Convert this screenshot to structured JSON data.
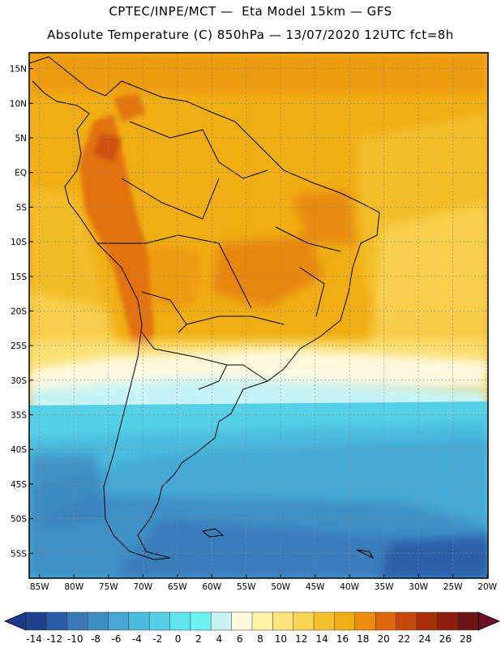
{
  "header": {
    "title_line1": "CPTEC/INPE/MCT —  Eta Model 15km — GFS",
    "title_line2": "Absolute Temperature (C) 850hPa — 13/07/2020 12UTC fct=8h"
  },
  "map": {
    "region": "South America",
    "lat_labels": [
      "15N",
      "10N",
      "5N",
      "EQ",
      "5S",
      "10S",
      "15S",
      "20S",
      "25S",
      "30S",
      "35S",
      "40S",
      "45S",
      "50S",
      "55S"
    ],
    "lat_values": [
      15,
      10,
      5,
      0,
      -5,
      -10,
      -15,
      -20,
      -25,
      -30,
      -35,
      -40,
      -45,
      -50,
      -55
    ],
    "lon_labels": [
      "85W",
      "80W",
      "75W",
      "70W",
      "65W",
      "60W",
      "55W",
      "50W",
      "45W",
      "40W",
      "35W",
      "30W",
      "25W",
      "20W"
    ],
    "lon_values": [
      -85,
      -80,
      -75,
      -70,
      -65,
      -60,
      -55,
      -50,
      -45,
      -40,
      -35,
      -30,
      -25,
      -20
    ]
  },
  "colorbar": {
    "tick_labels": [
      "-14",
      "-12",
      "-10",
      "-8",
      "-6",
      "-4",
      "-2",
      "0",
      "2",
      "4",
      "6",
      "8",
      "10",
      "12",
      "14",
      "16",
      "18",
      "20",
      "22",
      "24",
      "26",
      "28"
    ],
    "colors": [
      "#1f3f8f",
      "#2a5ca8",
      "#3a78b8",
      "#3d8cc4",
      "#45a6d2",
      "#4cbcdd",
      "#55d0e6",
      "#5fe3ec",
      "#6cf2f0",
      "#c8f4f6",
      "#fff9e0",
      "#fdf3a8",
      "#fbe47a",
      "#f8d454",
      "#f4c231",
      "#f0ae14",
      "#eb8e10",
      "#e0680c",
      "#c8480a",
      "#a83008",
      "#8c1f10",
      "#6e1616"
    ],
    "under_color": "#1e3a8a",
    "over_color": "#6a0f25"
  }
}
